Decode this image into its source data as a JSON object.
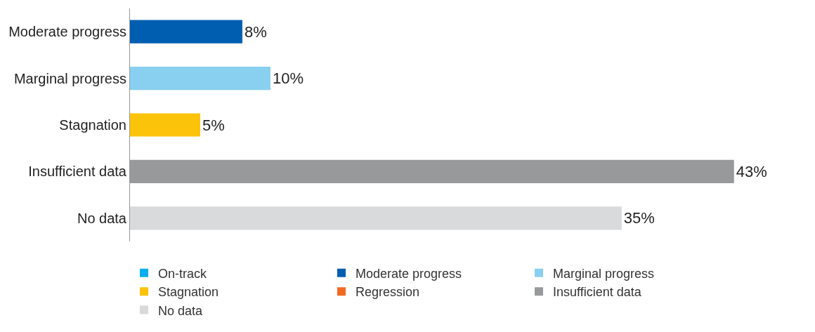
{
  "chart_data": {
    "type": "bar",
    "orientation": "horizontal",
    "categories": [
      "Moderate progress",
      "Marginal progress",
      "Stagnation",
      "Insufficient data",
      "No data"
    ],
    "series": [
      {
        "name": "On-track",
        "color": "#00aeef",
        "values": [
          null,
          null,
          null,
          null,
          null
        ]
      },
      {
        "name": "Moderate progress",
        "color": "#005eb0",
        "values": [
          8,
          null,
          null,
          null,
          null
        ],
        "value_labels": [
          "8%",
          null,
          null,
          null,
          null
        ]
      },
      {
        "name": "Marginal progress",
        "color": "#89cff0",
        "values": [
          null,
          10,
          null,
          null,
          null
        ],
        "value_labels": [
          null,
          "10%",
          null,
          null,
          null
        ]
      },
      {
        "name": "Stagnation",
        "color": "#fcc30b",
        "values": [
          null,
          null,
          5,
          null,
          null
        ],
        "value_labels": [
          null,
          null,
          "5%",
          null,
          null
        ]
      },
      {
        "name": "Regression",
        "color": "#f26a21",
        "values": [
          null,
          null,
          null,
          null,
          null
        ]
      },
      {
        "name": "Insufficient data",
        "color": "#97999b",
        "values": [
          null,
          null,
          null,
          43,
          null
        ],
        "value_labels": [
          null,
          null,
          null,
          "43%",
          null
        ]
      },
      {
        "name": "No data",
        "color": "#d9dadb",
        "values": [
          null,
          null,
          null,
          null,
          35
        ],
        "value_labels": [
          null,
          null,
          null,
          null,
          "35%"
        ]
      }
    ],
    "legend": "bottom",
    "grid": false,
    "tick_labels": "y"
  }
}
